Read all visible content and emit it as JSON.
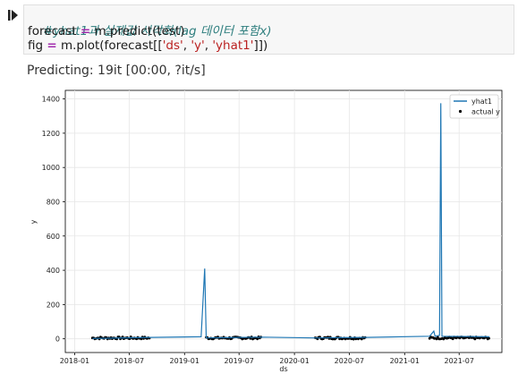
{
  "cell": {
    "line1_comment": "#yhat1과 실제값 시각화(lag 데이터 포함x)",
    "line2": {
      "a": "forecast ",
      "op": "=",
      "b": " m.predict(test)"
    },
    "line3": {
      "a": "fig ",
      "op": "=",
      "b": " m.plot(forecast[[",
      "s1": "'ds'",
      "c1": ", ",
      "s2": "'y'",
      "c2": ", ",
      "s3": "'yhat1'",
      "end": "]])"
    }
  },
  "output": {
    "progress_text": "Predicting: 19it [00:00, ?it/s]"
  },
  "colors": {
    "yhat1": "#1f77b4",
    "actual": "#000000",
    "grid": "#e6e6e6"
  },
  "chart_data": {
    "type": "line",
    "xlabel": "ds",
    "ylabel": "y",
    "ylim": [
      -80,
      1450
    ],
    "yticks": [
      0,
      200,
      400,
      600,
      800,
      1000,
      1200,
      1400
    ],
    "xticks": [
      "2018-01",
      "2018-07",
      "2019-01",
      "2019-07",
      "2020-01",
      "2020-07",
      "2021-01",
      "2021-07"
    ],
    "grid": true,
    "legend_position": "top-right",
    "legend": [
      "yhat1",
      "actual y"
    ],
    "series": [
      {
        "name": "yhat1",
        "style": "line",
        "points": [
          [
            "2018-03-01",
            2
          ],
          [
            "2018-09-10",
            8
          ],
          [
            "2019-02-25",
            12
          ],
          [
            "2019-03-09",
            410
          ],
          [
            "2019-03-14",
            5
          ],
          [
            "2019-09-15",
            10
          ],
          [
            "2020-03-10",
            5
          ],
          [
            "2020-08-25",
            8
          ],
          [
            "2021-03-25",
            15
          ],
          [
            "2021-04-08",
            45
          ],
          [
            "2021-04-12",
            15
          ],
          [
            "2021-04-27",
            20
          ],
          [
            "2021-05-01",
            1375
          ],
          [
            "2021-05-05",
            15
          ],
          [
            "2021-10-10",
            12
          ]
        ]
      },
      {
        "name": "actual y",
        "style": "dots",
        "ranges": [
          [
            "2018-03-01",
            "2018-09-10"
          ],
          [
            "2019-03-14",
            "2019-09-15"
          ],
          [
            "2020-03-10",
            "2020-08-25"
          ],
          [
            "2021-03-25",
            "2021-10-10"
          ]
        ],
        "approx_value": 5
      }
    ]
  }
}
